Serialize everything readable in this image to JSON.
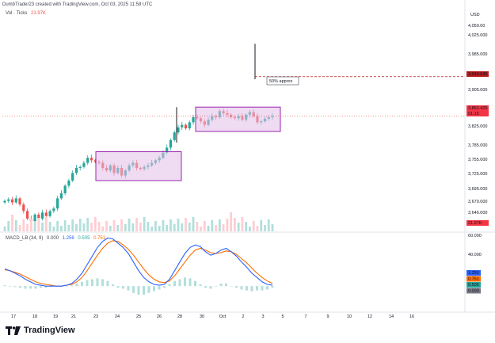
{
  "header": {
    "credit": "DumbTrader23 created with TradingView.com, Oct 03, 2025 11:58 UTC",
    "currency": "USD"
  },
  "volume_legend": {
    "label": "Vol · Ticks",
    "value": "21.97K"
  },
  "macd_legend": {
    "label": "MACD_LB (34, 9)",
    "v1": "0.000",
    "v2": "1.256",
    "v3": "0.505",
    "v4": "0.751"
  },
  "annotation": {
    "text": "50% approx"
  },
  "brand": {
    "name": "TradingView"
  },
  "colors": {
    "up": "#26a69a",
    "down": "#ef5350",
    "box_fill": "#e1bee7",
    "box_stroke": "#9c27b0",
    "dashed_target": "#b71c1c",
    "macd_line": "#2962ff",
    "signal_line": "#ff6d00",
    "hist": "#b2dfdb",
    "price_tag": "#f23645"
  },
  "price_axis": {
    "ticks": [
      "4,050.00",
      "4,025.000",
      "3,985.000",
      "3,940.046",
      "3,905.000",
      "3,862.425",
      "01:15",
      "3,825.000",
      "3,785.000",
      "3,755.000",
      "3,725.000",
      "3,695.000",
      "3,670.000",
      "3,646.000",
      "21.97K"
    ],
    "tick_values": [
      4050,
      4025,
      3985,
      null,
      3905,
      null,
      null,
      3825,
      3785,
      3755,
      3725,
      3695,
      3670,
      3646,
      null
    ],
    "target_label": "3,940.046",
    "current_label": "3,862.425",
    "countdown_label": "01:15",
    "volume_label": "21.97K"
  },
  "macd_axis": {
    "ticks": [
      "60.000",
      "40.000"
    ],
    "badges": [
      "1.256",
      "0.751",
      "0.505",
      "0.000"
    ]
  },
  "time_axis": {
    "labels": [
      "17",
      "18",
      "19",
      "21",
      "23",
      "24",
      "25",
      "26",
      "28",
      "30",
      "Oct",
      "2",
      "3",
      "5",
      "7",
      "9",
      "10",
      "12",
      "14",
      "16"
    ]
  },
  "chart_data": [
    {
      "type": "candlestick",
      "title": "",
      "ylabel": "USD",
      "ylim": [
        3635,
        4060
      ],
      "levels": {
        "target": 3940.046,
        "current": 3862.425
      },
      "consolidation_boxes": [
        {
          "x_from": "23",
          "x_to": "28",
          "y_low": 3735,
          "y_high": 3792
        },
        {
          "x_from": "30",
          "x_to": "3",
          "y_low": 3832,
          "y_high": 3880
        }
      ],
      "spikes": [
        {
          "x": "28",
          "high": 3880
        },
        {
          "x": "2",
          "high": 4005
        }
      ],
      "closes": [
        3695,
        3698,
        3692,
        3700,
        3688,
        3675,
        3660,
        3655,
        3668,
        3660,
        3672,
        3665,
        3675,
        3680,
        3700,
        3710,
        3725,
        3735,
        3750,
        3760,
        3762,
        3770,
        3780,
        3775,
        3772,
        3770,
        3760,
        3755,
        3765,
        3750,
        3760,
        3745,
        3755,
        3765,
        3770,
        3760,
        3758,
        3762,
        3765,
        3770,
        3775,
        3780,
        3790,
        3800,
        3815,
        3830,
        3840,
        3845,
        3838,
        3850,
        3860,
        3858,
        3852,
        3845,
        3855,
        3862,
        3860,
        3872,
        3868,
        3865,
        3860,
        3858,
        3862,
        3855,
        3865,
        3870,
        3862,
        3850,
        3852,
        3857,
        3860,
        3862
      ]
    },
    {
      "type": "macd",
      "title": "MACD_LB (34, 9)",
      "ylim": [
        -10,
        62
      ],
      "macd": [
        20,
        18,
        15,
        12,
        8,
        5,
        2,
        1,
        0,
        0,
        0,
        0,
        1,
        3,
        8,
        15,
        25,
        35,
        45,
        52,
        56,
        55,
        50,
        45,
        38,
        28,
        18,
        10,
        5,
        2,
        1,
        2,
        8,
        18,
        28,
        38,
        45,
        48,
        46,
        40,
        36,
        38,
        42,
        44,
        40,
        35,
        28,
        22,
        15,
        10,
        5,
        2,
        1
      ],
      "signal": [
        19,
        18,
        16,
        14,
        11,
        8,
        5,
        3,
        2,
        1,
        0,
        0,
        1,
        2,
        5,
        10,
        18,
        27,
        36,
        44,
        50,
        53,
        52,
        48,
        43,
        36,
        28,
        20,
        13,
        8,
        5,
        4,
        6,
        12,
        20,
        28,
        36,
        42,
        44,
        42,
        39,
        38,
        39,
        41,
        40,
        37,
        32,
        27,
        21,
        15,
        10,
        6,
        3
      ],
      "histogram": [
        1,
        0,
        -1,
        -2,
        -3,
        -3,
        -3,
        -2,
        -2,
        -1,
        0,
        0,
        0,
        1,
        3,
        5,
        7,
        8,
        9,
        8,
        6,
        2,
        -2,
        -3,
        -5,
        -8,
        -10,
        -10,
        -8,
        -6,
        -4,
        -2,
        2,
        6,
        8,
        10,
        9,
        6,
        2,
        -2,
        -3,
        0,
        3,
        3,
        0,
        -2,
        -4,
        -5,
        -6,
        -5,
        -5,
        -4,
        -2
      ]
    }
  ]
}
